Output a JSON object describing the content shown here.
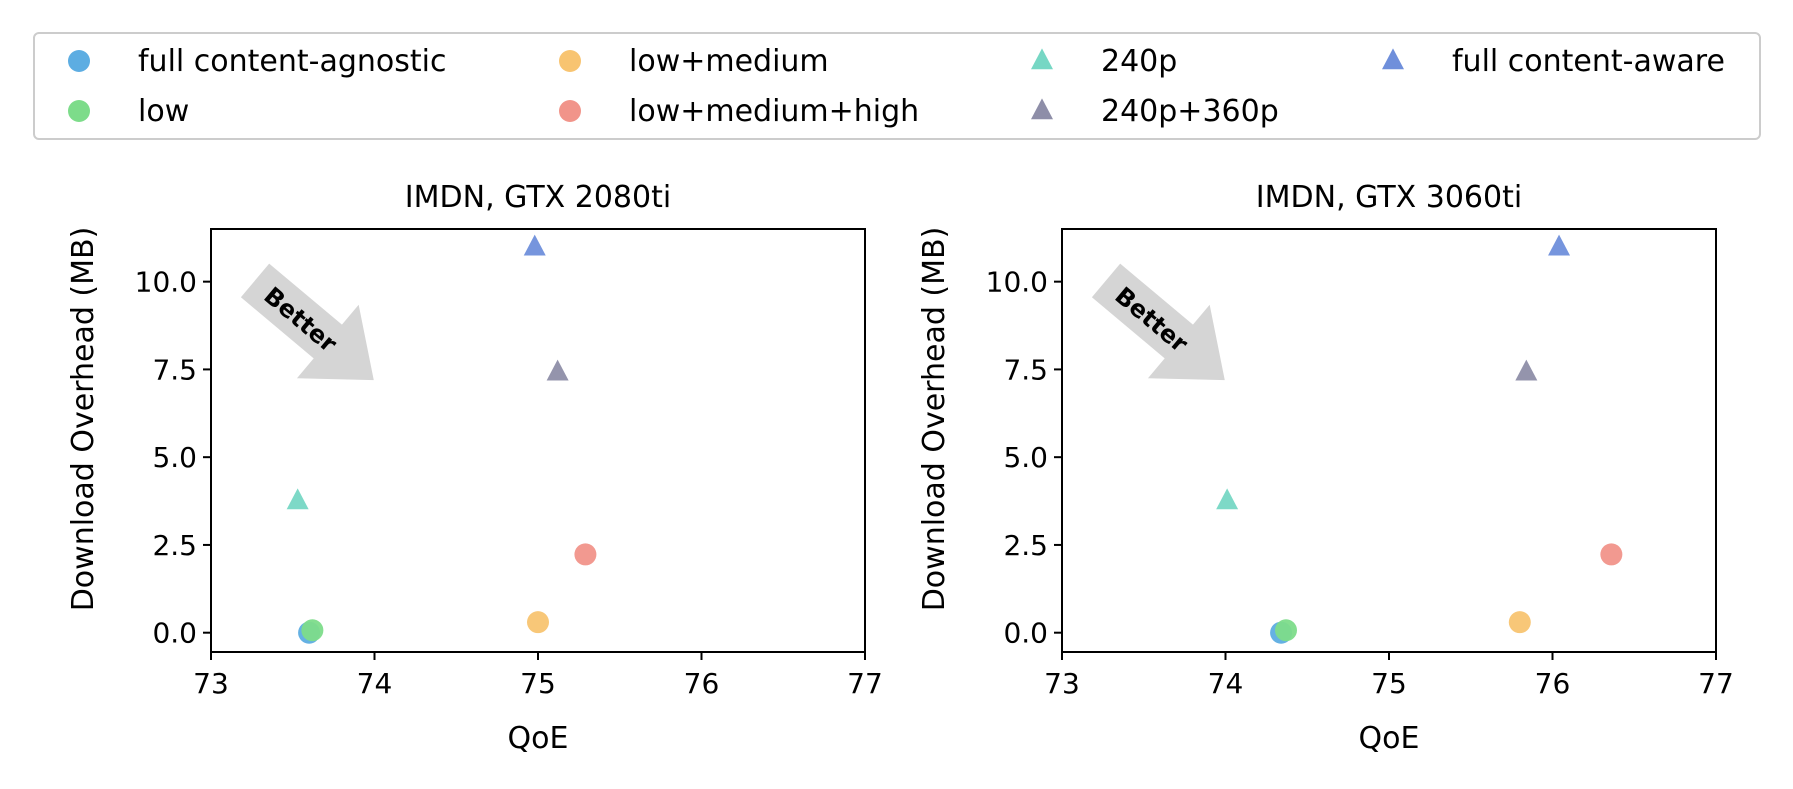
{
  "chart_data": [
    {
      "type": "scatter",
      "title": "IMDN, GTX 2080ti",
      "xlabel": "QoE",
      "ylabel": "Download Overhead (MB)",
      "xlim": [
        73,
        77
      ],
      "ylim": [
        -0.55,
        11.5
      ],
      "xticks": [
        73,
        74,
        75,
        76,
        77
      ],
      "yticks": [
        0.0,
        2.5,
        5.0,
        7.5,
        10.0
      ],
      "annotation": "Better",
      "series": [
        {
          "name": "full content-agnostic",
          "marker": "circle",
          "x": 73.6,
          "y": 0.0
        },
        {
          "name": "low",
          "marker": "circle",
          "x": 73.62,
          "y": 0.07
        },
        {
          "name": "low+medium",
          "marker": "circle",
          "x": 75.0,
          "y": 0.3
        },
        {
          "name": "low+medium+high",
          "marker": "circle",
          "x": 75.29,
          "y": 2.23
        },
        {
          "name": "240p",
          "marker": "triangle",
          "x": 73.53,
          "y": 3.75
        },
        {
          "name": "240p+360p",
          "marker": "triangle",
          "x": 75.12,
          "y": 7.42
        },
        {
          "name": "full content-aware",
          "marker": "triangle",
          "x": 74.98,
          "y": 10.98
        }
      ]
    },
    {
      "type": "scatter",
      "title": "IMDN, GTX 3060ti",
      "xlabel": "QoE",
      "ylabel": "Download Overhead (MB)",
      "xlim": [
        73,
        77
      ],
      "ylim": [
        -0.55,
        11.5
      ],
      "xticks": [
        73,
        74,
        75,
        76,
        77
      ],
      "yticks": [
        0.0,
        2.5,
        5.0,
        7.5,
        10.0
      ],
      "annotation": "Better",
      "series": [
        {
          "name": "full content-agnostic",
          "marker": "circle",
          "x": 74.34,
          "y": 0.0
        },
        {
          "name": "low",
          "marker": "circle",
          "x": 74.37,
          "y": 0.07
        },
        {
          "name": "low+medium",
          "marker": "circle",
          "x": 75.8,
          "y": 0.3
        },
        {
          "name": "low+medium+high",
          "marker": "circle",
          "x": 76.36,
          "y": 2.23
        },
        {
          "name": "240p",
          "marker": "triangle",
          "x": 74.01,
          "y": 3.75
        },
        {
          "name": "240p+360p",
          "marker": "triangle",
          "x": 75.84,
          "y": 7.42
        },
        {
          "name": "full content-aware",
          "marker": "triangle",
          "x": 76.04,
          "y": 10.98
        }
      ]
    }
  ],
  "legend": {
    "location": "top",
    "entries": [
      {
        "label": "full content-agnostic",
        "marker": "circle",
        "color": "#5DADE2"
      },
      {
        "label": "low+medium",
        "marker": "circle",
        "color": "#F8C471"
      },
      {
        "label": "240p",
        "marker": "triangle",
        "color": "#76D7C4"
      },
      {
        "label": "full content-aware",
        "marker": "triangle",
        "color": "#6F8FDB"
      },
      {
        "label": "low",
        "marker": "circle",
        "color": "#7DDC8A"
      },
      {
        "label": "low+medium+high",
        "marker": "circle",
        "color": "#F1948A"
      },
      {
        "label": "240p+360p",
        "marker": "triangle",
        "color": "#8E8EA8"
      }
    ]
  },
  "colors": {
    "full content-agnostic": "#5DADE2",
    "low": "#7DDC8A",
    "low+medium": "#F8C471",
    "low+medium+high": "#F1948A",
    "240p": "#76D7C4",
    "240p+360p": "#8E8EA8",
    "full content-aware": "#6F8FDB",
    "arrow": "#D5D5D5"
  }
}
